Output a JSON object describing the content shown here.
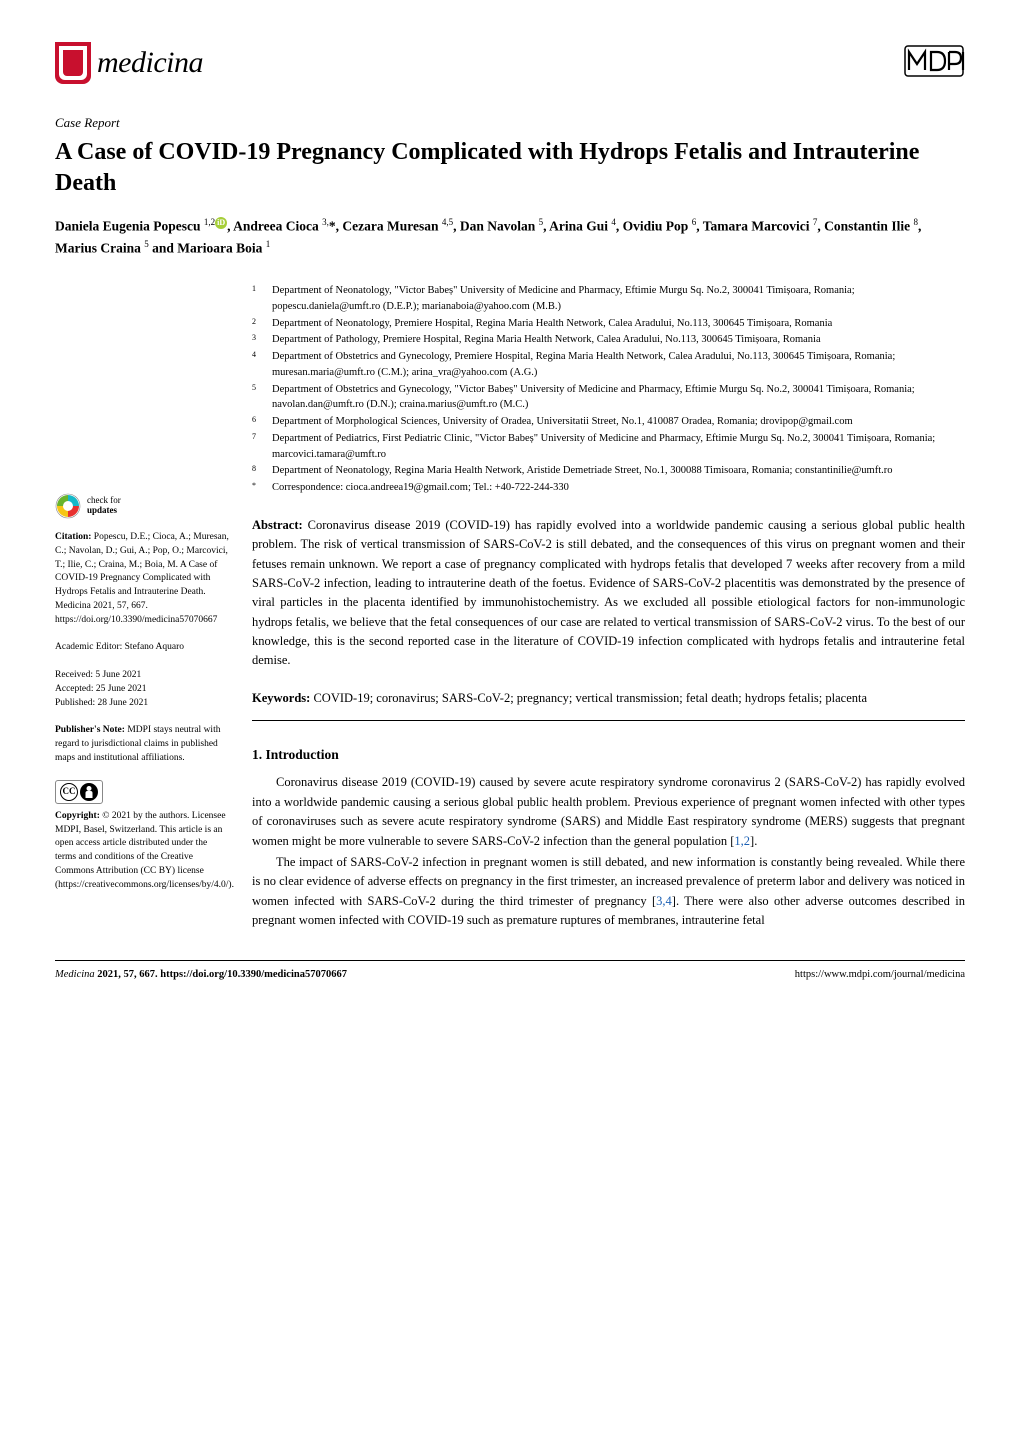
{
  "journal_name": "medicina",
  "article_type": "Case Report",
  "title": "A Case of COVID-19 Pregnancy Complicated with Hydrops Fetalis and Intrauterine Death",
  "authors_html": "Daniela Eugenia Popescu <sup>1,2</sup><span class=\"orcid\">iD</span>, Andreea Cioca <sup>3,</sup>*, Cezara Muresan <sup>4,5</sup>, Dan Navolan <sup>5</sup>, Arina Gui <sup>4</sup>, Ovidiu Pop <sup>6</sup>, Tamara Marcovici <sup>7</sup>, Constantin Ilie <sup>8</sup>, Marius Craina <sup>5</sup> and Marioara Boia <sup>1</sup>",
  "affiliations": [
    {
      "n": "1",
      "t": "Department of Neonatology, \"Victor Babeș\" University of Medicine and Pharmacy, Eftimie Murgu Sq. No.2, 300041 Timișoara, Romania; popescu.daniela@umft.ro (D.E.P.); marianaboia@yahoo.com (M.B.)"
    },
    {
      "n": "2",
      "t": "Department of Neonatology, Premiere Hospital, Regina Maria Health Network, Calea Aradului, No.113, 300645 Timișoara, Romania"
    },
    {
      "n": "3",
      "t": "Department of Pathology, Premiere Hospital, Regina Maria Health Network, Calea Aradului, No.113, 300645 Timișoara, Romania"
    },
    {
      "n": "4",
      "t": "Department of Obstetrics and Gynecology, Premiere Hospital, Regina Maria Health Network, Calea Aradului, No.113, 300645 Timișoara, Romania; muresan.maria@umft.ro (C.M.); arina_vra@yahoo.com (A.G.)"
    },
    {
      "n": "5",
      "t": "Department of Obstetrics and Gynecology, \"Victor Babeș\" University of Medicine and Pharmacy, Eftimie Murgu Sq. No.2, 300041 Timișoara, Romania; navolan.dan@umft.ro (D.N.); craina.marius@umft.ro (M.C.)"
    },
    {
      "n": "6",
      "t": "Department of Morphological Sciences, University of Oradea, Universitatii Street, No.1, 410087 Oradea, Romania; drovipop@gmail.com"
    },
    {
      "n": "7",
      "t": "Department of Pediatrics, First Pediatric Clinic, \"Victor Babeș\" University of Medicine and Pharmacy, Eftimie Murgu Sq. No.2, 300041 Timișoara, Romania; marcovici.tamara@umft.ro"
    },
    {
      "n": "8",
      "t": "Department of Neonatology, Regina Maria Health Network, Aristide Demetriade Street, No.1, 300088 Timisoara, Romania; constantinilie@umft.ro"
    },
    {
      "n": "*",
      "t": "Correspondence: cioca.andreea19@gmail.com; Tel.: +40-722-244-330"
    }
  ],
  "abstract_label": "Abstract:",
  "abstract": "Coronavirus disease 2019 (COVID-19) has rapidly evolved into a worldwide pandemic causing a serious global public health problem. The risk of vertical transmission of SARS-CoV-2 is still debated, and the consequences of this virus on pregnant women and their fetuses remain unknown. We report a case of pregnancy complicated with hydrops fetalis that developed 7 weeks after recovery from a mild SARS-CoV-2 infection, leading to intrauterine death of the foetus. Evidence of SARS-CoV-2 placentitis was demonstrated by the presence of viral particles in the placenta identified by immunohistochemistry. As we excluded all possible etiological factors for non-immunologic hydrops fetalis, we believe that the fetal consequences of our case are related to vertical transmission of SARS-CoV-2 virus. To the best of our knowledge, this is the second reported case in the literature of COVID-19 infection complicated with hydrops fetalis and intrauterine fetal demise.",
  "keywords_label": "Keywords:",
  "keywords": "COVID-19; coronavirus; SARS-CoV-2; pregnancy; vertical transmission; fetal death; hydrops fetalis; placenta",
  "section1_heading": "1. Introduction",
  "intro_p1": "Coronavirus disease 2019 (COVID-19) caused by severe acute respiratory syndrome coronavirus 2 (SARS-CoV-2) has rapidly evolved into a worldwide pandemic causing a serious global public health problem. Previous experience of pregnant women infected with other types of coronaviruses such as severe acute respiratory syndrome (SARS) and Middle East respiratory syndrome (MERS) suggests that pregnant women might be more vulnerable to severe SARS-CoV-2 infection than the general population [",
  "intro_p1_refs": "1,2",
  "intro_p1_end": "].",
  "intro_p2a": "The impact of SARS-CoV-2 infection in pregnant women is still debated, and new information is constantly being revealed. While there is no clear evidence of adverse effects on pregnancy in the first trimester, an increased prevalence of preterm labor and delivery was noticed in women infected with SARS-CoV-2 during the third trimester of pregnancy [",
  "intro_p2_refs": "3,4",
  "intro_p2b": "]. There were also other adverse outcomes described in pregnant women infected with COVID-19 such as premature ruptures of membranes, intrauterine fetal",
  "check_updates": {
    "line1": "check for",
    "line2": "updates"
  },
  "citation_label": "Citation:",
  "citation": "Popescu, D.E.; Cioca, A.; Muresan, C.; Navolan, D.; Gui, A.; Pop, O.; Marcovici, T.; Ilie, C.; Craina, M.; Boia, M. A Case of COVID-19 Pregnancy Complicated with Hydrops Fetalis and Intrauterine Death. Medicina 2021, 57, 667. https://doi.org/10.3390/medicina57070667",
  "editor": "Academic Editor: Stefano Aquaro",
  "dates": {
    "received": "Received: 5 June 2021",
    "accepted": "Accepted: 25 June 2021",
    "published": "Published: 28 June 2021"
  },
  "pubnote_label": "Publisher's Note:",
  "pubnote": "MDPI stays neutral with regard to jurisdictional claims in published maps and institutional affiliations.",
  "copyright_label": "Copyright:",
  "copyright": "© 2021 by the authors. Licensee MDPI, Basel, Switzerland. This article is an open access article distributed under the terms and conditions of the Creative Commons Attribution (CC BY) license (https://creativecommons.org/licenses/by/4.0/).",
  "footer": {
    "left_italic": "Medicina",
    "left_rest": " 2021, 57, 667. https://doi.org/10.3390/medicina57070667",
    "right": "https://www.mdpi.com/journal/medicina"
  },
  "colors": {
    "crest_red": "#c8102e",
    "orcid_green": "#a6ce39",
    "ref_blue": "#1a5fb4",
    "check_cyan": "#16b8c8",
    "check_red": "#e8312f",
    "check_yellow": "#f6c615",
    "check_green": "#6ab42d"
  }
}
